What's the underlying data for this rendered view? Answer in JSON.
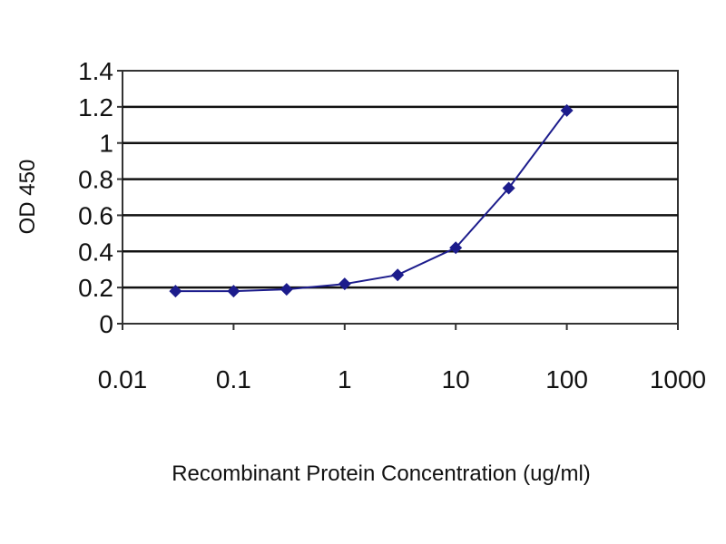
{
  "chart_data": {
    "type": "line",
    "title": "",
    "xlabel": "Recombinant Protein Concentration (ug/ml)",
    "ylabel": "OD 450",
    "x_scale": "log",
    "xlim": [
      0.01,
      1000
    ],
    "ylim": [
      0,
      1.4
    ],
    "x_ticks": [
      "0.01",
      "0.1",
      "1",
      "10",
      "100",
      "1000"
    ],
    "y_ticks": [
      "0",
      "0.2",
      "0.4",
      "0.6",
      "0.8",
      "1",
      "1.2",
      "1.4"
    ],
    "grid": "horizontal",
    "legend": "none",
    "series": [
      {
        "x": [
          0.03,
          0.1,
          0.3,
          1,
          3,
          10,
          30,
          100
        ],
        "y": [
          0.18,
          0.18,
          0.19,
          0.22,
          0.27,
          0.42,
          0.75,
          1.18
        ],
        "color": "#1c1c8c",
        "marker": "diamond"
      }
    ]
  }
}
